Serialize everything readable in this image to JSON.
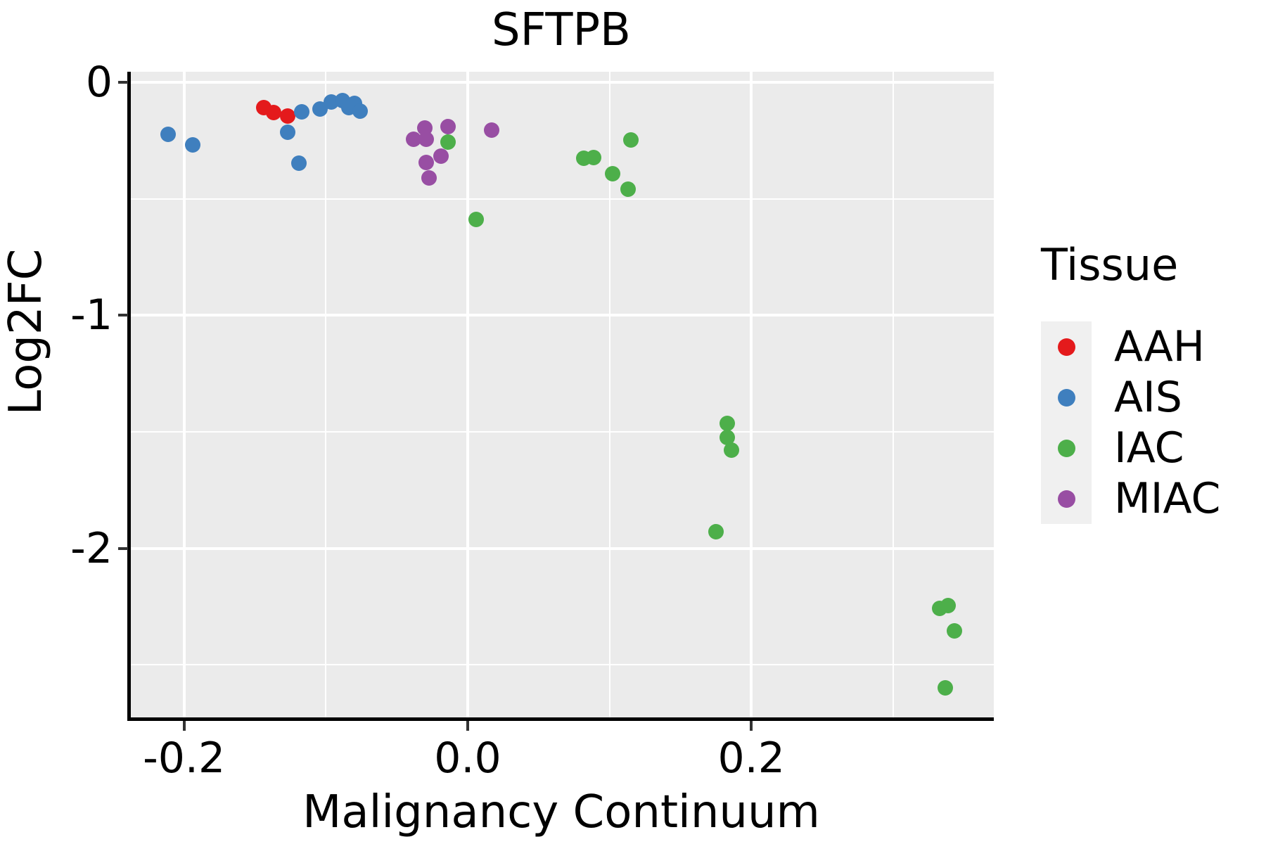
{
  "title": "SFTPB",
  "axes": {
    "x": {
      "label": "Malignancy Continuum",
      "range": [
        -0.239,
        0.371
      ],
      "major_ticks": [
        -0.2,
        0.0,
        0.2
      ],
      "major_tick_labels": [
        "-0.2",
        "0.0",
        "0.2"
      ],
      "minor_ticks": [
        -0.1,
        0.1,
        0.3
      ]
    },
    "y": {
      "label": "Log2FC",
      "range": [
        -2.726,
        0.046
      ],
      "major_ticks": [
        0,
        -1,
        -2
      ],
      "major_tick_labels": [
        "0",
        "-1",
        "-2"
      ],
      "minor_ticks": [
        -0.5,
        -1.5,
        -2.5
      ]
    }
  },
  "legend": {
    "title": "Tissue",
    "entries": [
      {
        "label": "AAH",
        "color": "#E41A1C"
      },
      {
        "label": "AIS",
        "color": "#3F7FBE"
      },
      {
        "label": "IAC",
        "color": "#4DAF4A"
      },
      {
        "label": "MIAC",
        "color": "#984EA3"
      }
    ]
  },
  "chart_data": {
    "type": "scatter",
    "title": "SFTPB",
    "xlabel": "Malignancy Continuum",
    "ylabel": "Log2FC",
    "xlim": [
      -0.239,
      0.371
    ],
    "ylim": [
      -2.726,
      0.046
    ],
    "grid": "on",
    "legend_position": "right",
    "panel_background": "#EBEBEB",
    "series": [
      {
        "name": "AAH",
        "color": "#E41A1C",
        "points": [
          [
            -0.144,
            -0.108
          ],
          [
            -0.137,
            -0.13
          ],
          [
            -0.127,
            -0.145
          ]
        ]
      },
      {
        "name": "AIS",
        "color": "#3F7FBE",
        "points": [
          [
            -0.211,
            -0.223
          ],
          [
            -0.194,
            -0.268
          ],
          [
            -0.117,
            -0.127
          ],
          [
            -0.127,
            -0.215
          ],
          [
            -0.119,
            -0.346
          ],
          [
            -0.104,
            -0.114
          ],
          [
            -0.096,
            -0.084
          ],
          [
            -0.088,
            -0.079
          ],
          [
            -0.084,
            -0.109
          ],
          [
            -0.08,
            -0.09
          ],
          [
            -0.076,
            -0.124
          ]
        ]
      },
      {
        "name": "IAC",
        "color": "#4DAF4A",
        "points": [
          [
            -0.014,
            -0.255
          ],
          [
            0.006,
            -0.589
          ],
          [
            0.082,
            -0.325
          ],
          [
            0.089,
            -0.322
          ],
          [
            0.115,
            -0.247
          ],
          [
            0.102,
            -0.391
          ],
          [
            0.113,
            -0.458
          ],
          [
            0.183,
            -1.464
          ],
          [
            0.183,
            -1.524
          ],
          [
            0.186,
            -1.578
          ],
          [
            0.175,
            -1.928
          ],
          [
            0.333,
            -2.259
          ],
          [
            0.339,
            -2.247
          ],
          [
            0.343,
            -2.355
          ],
          [
            0.337,
            -2.6
          ]
        ]
      },
      {
        "name": "MIAC",
        "color": "#984EA3",
        "points": [
          [
            -0.03,
            -0.195
          ],
          [
            -0.038,
            -0.245
          ],
          [
            -0.029,
            -0.245
          ],
          [
            -0.014,
            -0.19
          ],
          [
            -0.019,
            -0.315
          ],
          [
            -0.029,
            -0.345
          ],
          [
            -0.027,
            -0.409
          ],
          [
            0.017,
            -0.205
          ]
        ]
      }
    ]
  }
}
